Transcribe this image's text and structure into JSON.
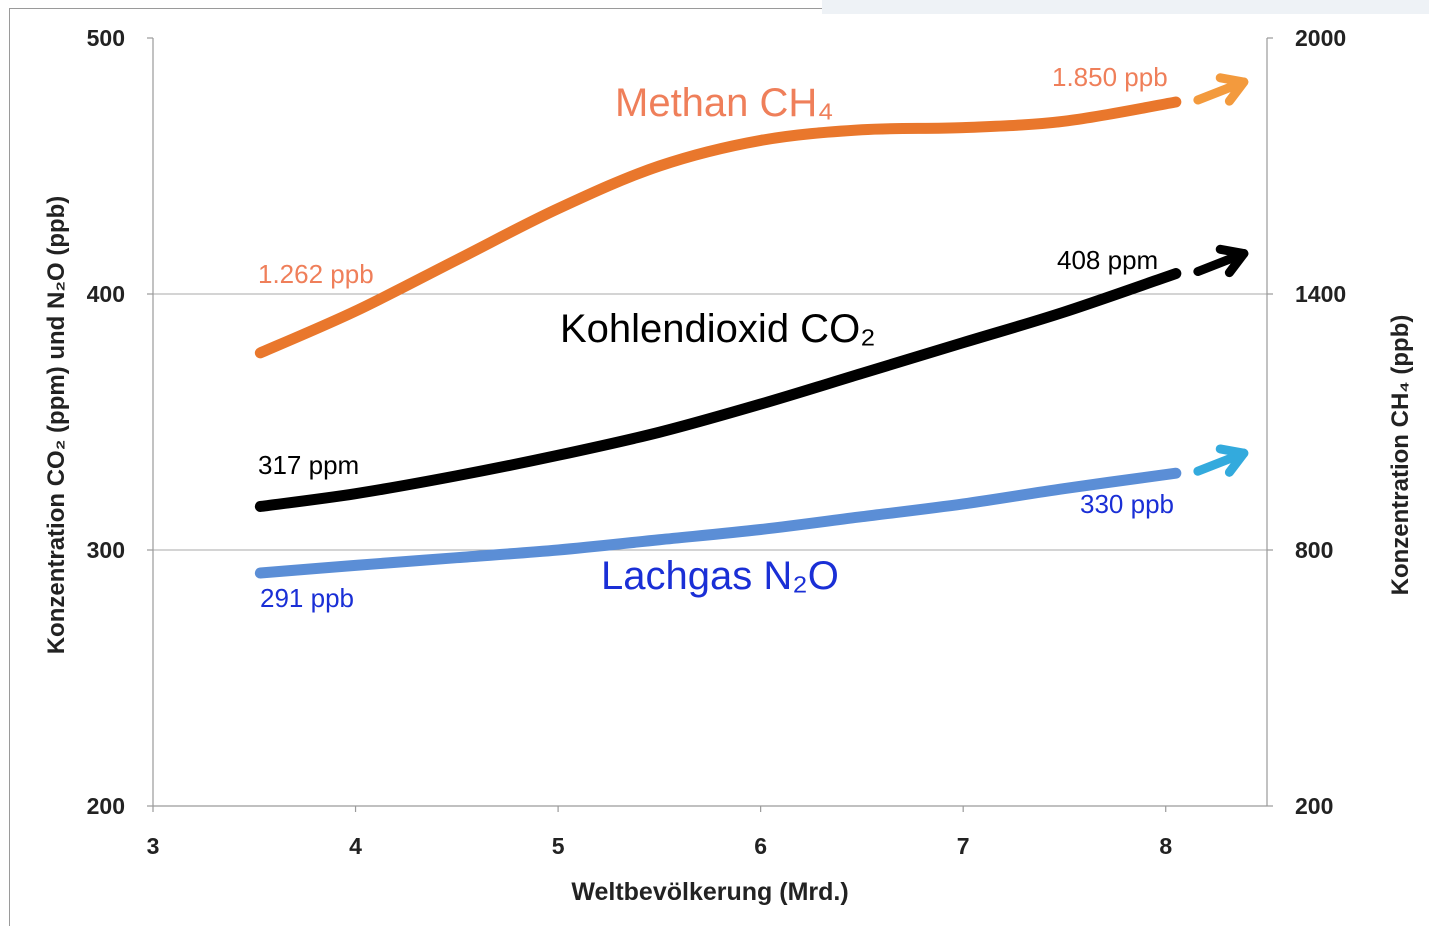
{
  "chart_data": {
    "type": "line",
    "xlabel": "Weltbevölkerung (Mrd.)",
    "ylabel": "Konzentration CO₂ (ppm) und N₂O (ppb)",
    "y2label": "Konzentration  CH₄ (ppb)",
    "xlim": [
      3,
      8.5
    ],
    "ylim": [
      200,
      500
    ],
    "y2lim": [
      200,
      2000
    ],
    "x_ticks": [
      "3",
      "4",
      "5",
      "6",
      "7",
      "8"
    ],
    "y_ticks": [
      "200",
      "300",
      "400",
      "500"
    ],
    "y2_ticks": [
      "200",
      "800",
      "1400",
      "2000"
    ],
    "grid": "horizontal",
    "series": [
      {
        "name": "Methan CH₄",
        "axis": "right",
        "color": "#e9772c",
        "x": [
          3.53,
          4.0,
          4.5,
          5.0,
          5.5,
          6.0,
          6.5,
          7.0,
          7.5,
          8.05
        ],
        "y": [
          1262,
          1360,
          1480,
          1600,
          1700,
          1760,
          1785,
          1790,
          1805,
          1850
        ],
        "start_label": "1.262 ppb",
        "end_label": "1.850 ppb"
      },
      {
        "name": "Kohlendioxid CO₂",
        "axis": "left",
        "color": "#000000",
        "x": [
          3.53,
          4.0,
          4.5,
          5.0,
          5.5,
          6.0,
          6.5,
          7.0,
          7.5,
          8.05
        ],
        "y": [
          317,
          322,
          329,
          337,
          346,
          357,
          369,
          381,
          393,
          408
        ],
        "start_label": "317 ppm",
        "end_label": "408 ppm"
      },
      {
        "name": "Lachgas N₂O",
        "axis": "left",
        "color": "#5b8ed6",
        "x": [
          3.53,
          4.0,
          4.5,
          5.0,
          5.5,
          6.0,
          6.5,
          7.0,
          7.5,
          8.05
        ],
        "y": [
          291,
          294,
          297,
          300,
          304,
          308,
          313,
          318,
          324,
          330
        ],
        "start_label": "291 ppb",
        "end_label": "330 ppb"
      }
    ],
    "arrow_colors": [
      "#f39a3d",
      "#000000",
      "#33aadd"
    ]
  }
}
